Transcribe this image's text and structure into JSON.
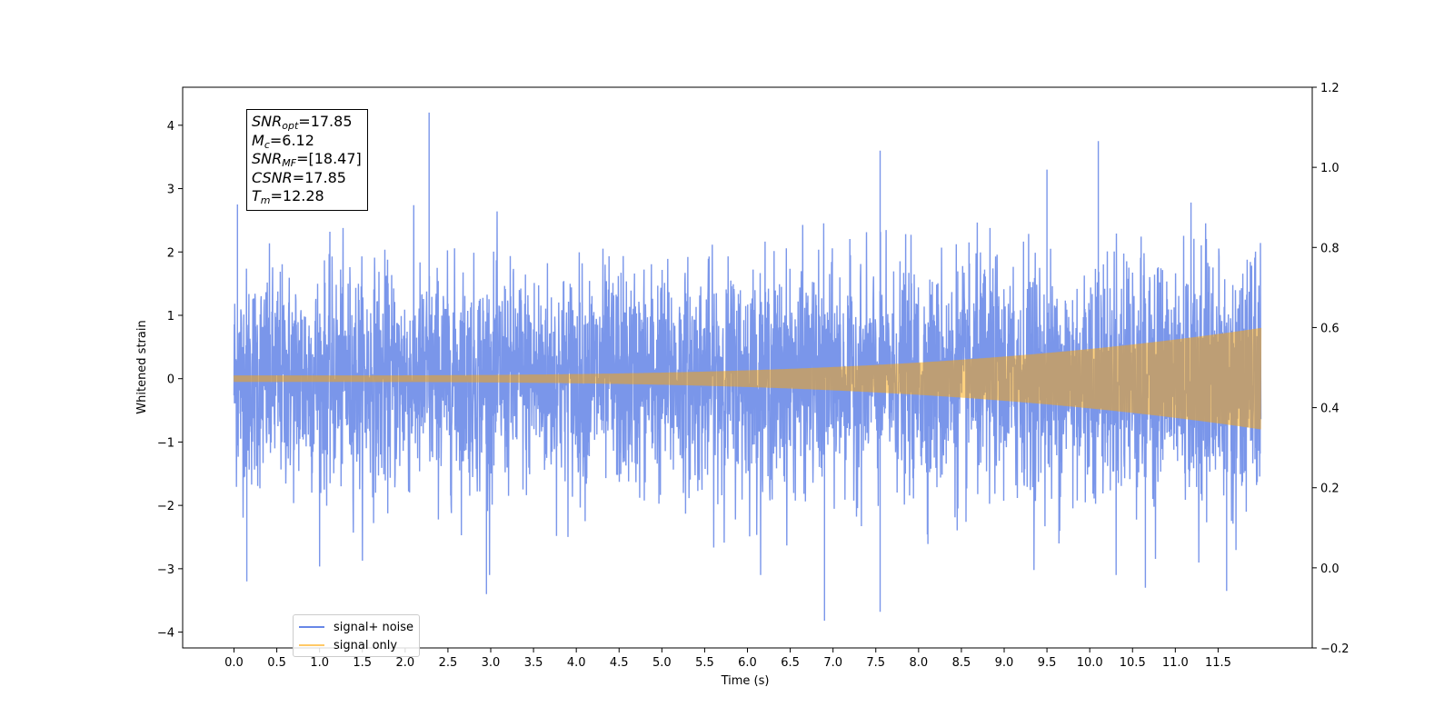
{
  "chart_data": {
    "type": "line",
    "xlabel": "Time (s)",
    "ylabel": "Whitened strain",
    "xlim": [
      -0.6,
      12.6
    ],
    "ylim": [
      -4.25,
      4.6
    ],
    "y2lim": [
      -0.2,
      1.2
    ],
    "x_ticks": [
      "0.0",
      "0.5",
      "1.0",
      "1.5",
      "2.0",
      "2.5",
      "3.0",
      "3.5",
      "4.0",
      "4.5",
      "5.0",
      "5.5",
      "6.0",
      "6.5",
      "7.0",
      "7.5",
      "8.0",
      "8.5",
      "9.0",
      "9.5",
      "10.0",
      "10.5",
      "11.0",
      "11.5"
    ],
    "y_ticks": [
      "4",
      "3",
      "2",
      "1",
      "0",
      "−1",
      "−2",
      "−3",
      "−4"
    ],
    "y2_ticks": [
      "1.2",
      "1.0",
      "0.8",
      "0.6",
      "0.4",
      "0.2",
      "0.0",
      "−0.2"
    ],
    "duration_s": 12.0,
    "series": [
      {
        "name": "signal+ noise",
        "color": "#4169e1",
        "opacity": 0.7,
        "noise_sigma": 0.85,
        "notable_peaks": [
          {
            "x": 0.04,
            "y": 2.75
          },
          {
            "x": 0.15,
            "y": -3.2
          },
          {
            "x": 2.28,
            "y": 4.2
          },
          {
            "x": 2.95,
            "y": -3.4
          },
          {
            "x": 6.9,
            "y": -3.82
          },
          {
            "x": 7.55,
            "y": 3.6
          },
          {
            "x": 7.55,
            "y": -3.68
          },
          {
            "x": 10.1,
            "y": 3.75
          },
          {
            "x": 11.6,
            "y": -3.35
          },
          {
            "x": 9.5,
            "y": 3.3
          },
          {
            "x": 10.65,
            "y": -3.3
          }
        ]
      },
      {
        "name": "signal only",
        "color": "#ffa500",
        "opacity": 0.5,
        "amplitude_start": 0.05,
        "amplitude_end": 0.8
      }
    ],
    "legend_position": "lower left",
    "annotation": {
      "snr_opt": "17.85",
      "mc": "6.12",
      "snr_mf": "[18.47]",
      "csnr": "17.85",
      "tm": "12.28"
    }
  }
}
